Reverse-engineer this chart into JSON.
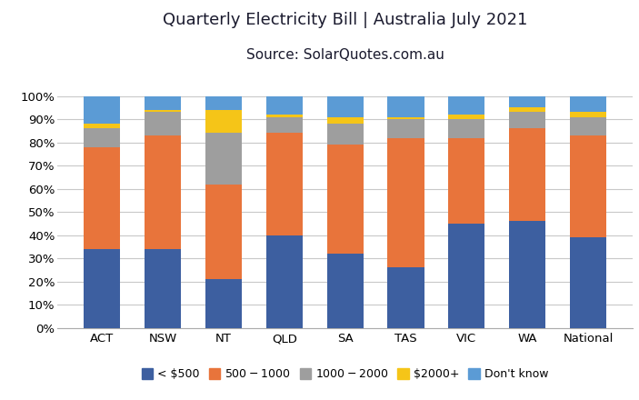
{
  "categories": [
    "ACT",
    "NSW",
    "NT",
    "QLD",
    "SA",
    "TAS",
    "VIC",
    "WA",
    "National"
  ],
  "series": {
    "< $500": [
      34,
      34,
      21,
      40,
      32,
      26,
      45,
      46,
      39
    ],
    "$500 - $1000": [
      44,
      49,
      41,
      44,
      47,
      56,
      37,
      40,
      44
    ],
    "$1000- $2000": [
      8,
      10,
      22,
      7,
      9,
      8,
      8,
      7,
      8
    ],
    "$2000+": [
      2,
      1,
      10,
      1,
      3,
      1,
      2,
      2,
      2
    ],
    "Don't know": [
      12,
      6,
      6,
      8,
      9,
      9,
      8,
      5,
      7
    ]
  },
  "colors": {
    "< $500": "#3D5FA0",
    "$500 - $1000": "#E8743B",
    "$1000- $2000": "#9E9E9E",
    "$2000+": "#F5C518",
    "Don't know": "#5B9BD5"
  },
  "title_line1": "Quarterly Electricity Bill | Australia July 2021",
  "title_line2": "Source: SolarQuotes.com.au",
  "ylim": [
    0,
    100
  ],
  "ytick_labels": [
    "0%",
    "10%",
    "20%",
    "30%",
    "40%",
    "50%",
    "60%",
    "70%",
    "80%",
    "90%",
    "100%"
  ],
  "title_fontsize": 13,
  "subtitle_fontsize": 11,
  "legend_fontsize": 9,
  "tick_fontsize": 9.5,
  "background_color": "#FFFFFF",
  "grid_color": "#C8C8C8",
  "bar_width": 0.6
}
